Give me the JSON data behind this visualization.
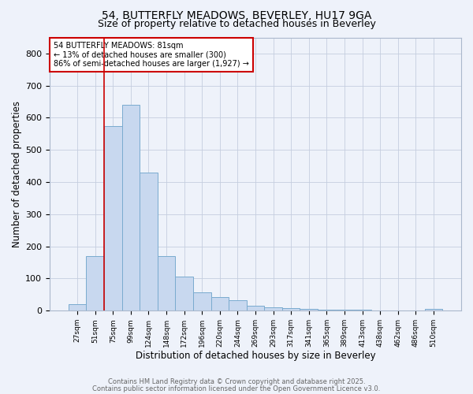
{
  "title1": "54, BUTTERFLY MEADOWS, BEVERLEY, HU17 9GA",
  "title2": "Size of property relative to detached houses in Beverley",
  "xlabel": "Distribution of detached houses by size in Beverley",
  "ylabel": "Number of detached properties",
  "bin_labels": [
    "27sqm",
    "51sqm",
    "75sqm",
    "99sqm",
    "124sqm",
    "148sqm",
    "172sqm",
    "196sqm",
    "220sqm",
    "244sqm",
    "269sqm",
    "293sqm",
    "317sqm",
    "341sqm",
    "365sqm",
    "389sqm",
    "413sqm",
    "438sqm",
    "462sqm",
    "486sqm",
    "510sqm"
  ],
  "bar_heights": [
    20,
    170,
    575,
    640,
    430,
    170,
    105,
    57,
    42,
    33,
    15,
    10,
    8,
    5,
    4,
    3,
    2,
    1,
    0,
    0,
    5
  ],
  "bar_color": "#c8d8ef",
  "bar_edge_color": "#7aabcf",
  "bar_edge_width": 0.7,
  "red_line_color": "#cc0000",
  "ylim": [
    0,
    850
  ],
  "yticks": [
    0,
    100,
    200,
    300,
    400,
    500,
    600,
    700,
    800
  ],
  "annotation_text": "54 BUTTERFLY MEADOWS: 81sqm\n← 13% of detached houses are smaller (300)\n86% of semi-detached houses are larger (1,927) →",
  "annotation_box_color": "#ffffff",
  "annotation_box_edge": "#cc0000",
  "footer1": "Contains HM Land Registry data © Crown copyright and database right 2025.",
  "footer2": "Contains public sector information licensed under the Open Government Licence v3.0.",
  "bg_color": "#eef2fa",
  "plot_bg_color": "#eef2fa",
  "grid_color": "#c5cedf"
}
